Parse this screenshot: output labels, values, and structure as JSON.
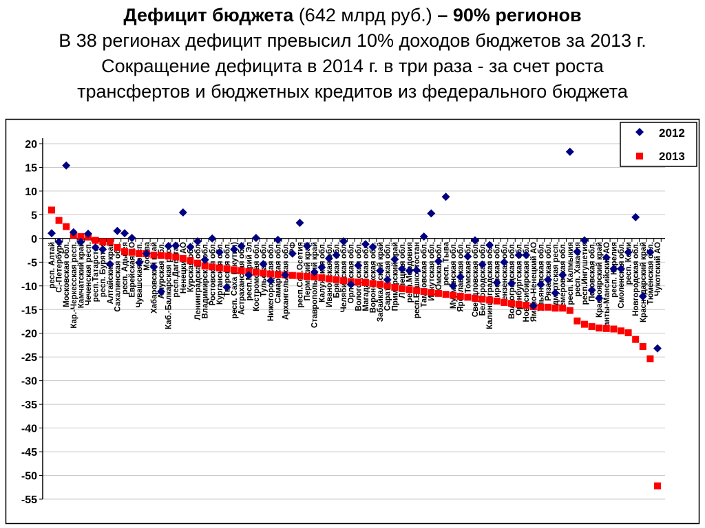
{
  "header": {
    "line1_bold_a": "Дефицит бюджета",
    "line1_normal": " (642 млрд руб.) ",
    "line1_bold_b": "– 90% регионов",
    "line2": "В 38 регионах дефицит превысил 10% доходов бюджетов за 2013 г.",
    "line3": "Сокращение дефицита в 2014 г. в три раза - за счет роста",
    "line4": "трансфертов и бюджетных кредитов из федерального бюджета"
  },
  "chart_data": {
    "type": "scatter",
    "title": "",
    "xlabel": "",
    "ylabel": "",
    "ylim": [
      -55,
      20
    ],
    "yticks": [
      20,
      15,
      10,
      5,
      0,
      -5,
      -10,
      -15,
      -20,
      -25,
      -30,
      -35,
      -40,
      -45,
      -50,
      -55
    ],
    "grid": true,
    "legend_position": "top-right",
    "categories": [
      "респ. Алтай",
      "С.-Петербург",
      "Московская обл.",
      "Кар.-Черкесская респ.",
      "Камчатский край",
      "Чеченская респ.",
      "респ.Татарстан",
      "респ. Бурятия",
      "Алтайский край",
      "Сахалинская обл.",
      "респ. Адыгея",
      "Еврейская АО",
      "Чувашская респ.",
      "Москва",
      "Хабаровский край",
      "Амурская обл.",
      "Каб.-Балкарская респ.",
      "респ.Дагестан",
      "Ненецкий АО",
      "Курская обл.",
      "Ленинградская обл.",
      "Владимирская обл.",
      "Ростовская обл.",
      "Курганская обл.",
      "Тверская обл.",
      "респ. Саха (Якутия)",
      "Астраханская обл.",
      "респ.Марий Эл",
      "Костромская обл.",
      "Тульская обл.",
      "Нижегородская обл.",
      "Самарская обл.",
      "Архангельская обл.",
      "РФ",
      "респ.Сев.Осетия",
      "Пермский край",
      "Ставропольский край",
      "Калужская обл.",
      "Ивановская обл.",
      "Брянская обл.",
      "Челябинская обл.",
      "Орловская обл.",
      "Вологодская обл.",
      "Магаданская обл.",
      "Воронежская обл.",
      "Забайкальский край",
      "Саратовская обл.",
      "Приморский край",
      "Липецкая обл.",
      "респ.Мордовия",
      "респ.Башкортостан",
      "Тамбовская обл.",
      "Иркутская обл.",
      "Омская обл.",
      "респ. Тыва",
      "Мурманская обл.",
      "Ярославская обл.",
      "Томская обл.",
      "Свердловская обл.",
      "Белгородская обл.",
      "Калининградская обл.",
      "Кировская обл.",
      "Пензенская обл.",
      "Волгоградская обл.",
      "Оренбургская обл.",
      "Новосибирская обл.",
      "Ямало-Ненецкий АО",
      "Ульяновская обл.",
      "Рязанская обл.",
      "Удмуртская респ.",
      "Кемеровская обл.",
      "респ. Калмыкия",
      "респ. Хакасия",
      "респ.Ингушетия",
      "Псковская обл.",
      "Красноярский край",
      "Ханты-Мансийский АО",
      "респ. Карелия",
      "Смоленская обл.",
      "респ. Коми",
      "Новгородская обл.",
      "Краснодарский край",
      "Тюменская обл.",
      "Чукотский АО"
    ],
    "series": [
      {
        "name": "2012",
        "color": "#000080",
        "marker": "diamond",
        "values": [
          1.1,
          -0.7,
          15.4,
          1.3,
          -0.7,
          1.0,
          -1.9,
          -2.3,
          -5.4,
          1.6,
          1.1,
          0.1,
          -5.1,
          -3.2,
          -6.0,
          -11.2,
          -1.6,
          -1.5,
          5.5,
          -1.8,
          -0.6,
          -4.5,
          0.0,
          -2.9,
          -10.3,
          -2.3,
          -1.6,
          -7.7,
          0.1,
          -5.4,
          -8.9,
          -0.3,
          -7.7,
          -3.2,
          3.3,
          -1.6,
          -7.1,
          -6.1,
          -4.2,
          -3.5,
          -0.6,
          -9.7,
          -5.7,
          -1.2,
          -1.8,
          -6.8,
          -8.7,
          -4.4,
          -6.4,
          -6.8,
          -6.7,
          0.4,
          5.3,
          -4.8,
          8.8,
          -10.0,
          -8.1,
          -3.8,
          -0.4,
          -5.5,
          -1.4,
          -9.3,
          -5.0,
          -9.5,
          -3.5,
          -3.5,
          -14.2,
          -9.7,
          -8.7,
          -11.5,
          -7.7,
          18.3,
          -2.8,
          -0.4,
          -10.9,
          -12.6,
          -4.0,
          -6.4,
          -6.4,
          -2.9,
          4.5,
          -12.2,
          -2.9,
          -23.2
        ]
      },
      {
        "name": "2013",
        "color": "#FF0000",
        "marker": "square",
        "values": [
          6.0,
          3.8,
          2.5,
          0.7,
          0.4,
          0.3,
          -0.4,
          -0.7,
          -0.7,
          -1.9,
          -2.8,
          -2.9,
          -3.2,
          -3.2,
          -3.5,
          -3.6,
          -3.7,
          -3.9,
          -4.2,
          -4.7,
          -5.2,
          -5.8,
          -6.0,
          -6.2,
          -6.4,
          -6.6,
          -6.8,
          -7.0,
          -7.1,
          -7.3,
          -7.5,
          -7.6,
          -7.7,
          -7.8,
          -7.9,
          -8.0,
          -8.1,
          -8.3,
          -8.5,
          -8.7,
          -8.9,
          -9.1,
          -9.2,
          -9.3,
          -9.5,
          -9.7,
          -10.0,
          -10.3,
          -10.6,
          -10.8,
          -11.0,
          -11.2,
          -11.4,
          -11.6,
          -11.8,
          -12.0,
          -12.2,
          -12.4,
          -12.6,
          -12.8,
          -13.0,
          -13.2,
          -13.5,
          -13.7,
          -13.9,
          -14.1,
          -14.4,
          -14.5,
          -14.5,
          -14.7,
          -14.7,
          -15.2,
          -17.4,
          -18.1,
          -18.6,
          -18.9,
          -19.0,
          -19.1,
          -19.5,
          -19.9,
          -21.3,
          -22.8,
          -25.4,
          -52.2
        ]
      }
    ]
  }
}
